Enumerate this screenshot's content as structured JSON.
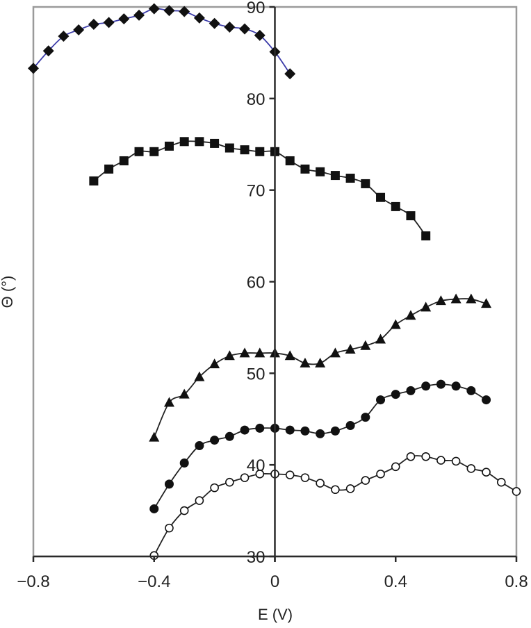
{
  "chart_data": {
    "type": "line",
    "title": "",
    "xlabel": "E (V)",
    "ylabel": "Θ (°)",
    "xlim": [
      -0.8,
      0.8
    ],
    "ylim": [
      30,
      90
    ],
    "xticks": [
      -0.8,
      -0.4,
      0,
      0.4,
      0.8
    ],
    "xtick_labels": [
      "−0.8",
      "−0.4",
      "0",
      "0.4",
      "0.8"
    ],
    "yticks": [
      30,
      40,
      50,
      60,
      70,
      80,
      90
    ],
    "ytick_labels": [
      "30",
      "40",
      "50",
      "60",
      "70",
      "80",
      "90"
    ],
    "grid": false,
    "legend": null,
    "series": [
      {
        "name": "diamonds",
        "marker": "diamond-filled",
        "line_color": "#3a3aa8",
        "x": [
          -0.8,
          -0.75,
          -0.7,
          -0.65,
          -0.6,
          -0.55,
          -0.5,
          -0.45,
          -0.4,
          -0.35,
          -0.3,
          -0.25,
          -0.2,
          -0.15,
          -0.1,
          -0.05,
          0,
          0.05
        ],
        "y": [
          83.3,
          85.2,
          86.8,
          87.5,
          88.1,
          88.3,
          88.7,
          89.1,
          89.8,
          89.6,
          89.5,
          88.8,
          88.2,
          87.8,
          87.6,
          86.9,
          85.1,
          82.7
        ]
      },
      {
        "name": "squares",
        "marker": "square-filled",
        "line_color": "#222222",
        "x": [
          -0.6,
          -0.55,
          -0.5,
          -0.45,
          -0.4,
          -0.35,
          -0.3,
          -0.25,
          -0.2,
          -0.15,
          -0.1,
          -0.05,
          0,
          0.05,
          0.1,
          0.15,
          0.2,
          0.25,
          0.3,
          0.35,
          0.4,
          0.45,
          0.5
        ],
        "y": [
          71.0,
          72.3,
          73.2,
          74.2,
          74.2,
          74.8,
          75.3,
          75.3,
          75.1,
          74.6,
          74.4,
          74.2,
          74.2,
          73.2,
          72.3,
          72.0,
          71.6,
          71.3,
          70.7,
          69.2,
          68.2,
          67.2,
          65.0
        ]
      },
      {
        "name": "triangles",
        "marker": "triangle-filled",
        "line_color": "#222222",
        "x": [
          -0.4,
          -0.35,
          -0.3,
          -0.25,
          -0.2,
          -0.15,
          -0.1,
          -0.05,
          0,
          0.05,
          0.1,
          0.15,
          0.2,
          0.25,
          0.3,
          0.35,
          0.4,
          0.45,
          0.5,
          0.55,
          0.6,
          0.65,
          0.7
        ],
        "y": [
          43.0,
          46.8,
          47.7,
          49.6,
          51.0,
          51.9,
          52.2,
          52.2,
          52.2,
          51.9,
          51.1,
          51.1,
          52.2,
          52.6,
          53.0,
          53.7,
          55.3,
          56.3,
          57.2,
          57.9,
          58.1,
          58.1,
          57.6
        ]
      },
      {
        "name": "filled circles",
        "marker": "circle-filled",
        "line_color": "#222222",
        "x": [
          -0.4,
          -0.35,
          -0.3,
          -0.25,
          -0.2,
          -0.15,
          -0.1,
          -0.05,
          0,
          0.05,
          0.1,
          0.15,
          0.2,
          0.25,
          0.3,
          0.35,
          0.4,
          0.45,
          0.5,
          0.55,
          0.6,
          0.65,
          0.7
        ],
        "y": [
          35.2,
          37.9,
          40.2,
          42.1,
          42.7,
          43.1,
          43.8,
          44.0,
          44.0,
          43.8,
          43.7,
          43.4,
          43.7,
          44.3,
          45.2,
          47.1,
          47.7,
          48.1,
          48.6,
          48.8,
          48.6,
          48.1,
          47.1
        ]
      },
      {
        "name": "open circles",
        "marker": "circle-open",
        "line_color": "#222222",
        "x": [
          -0.4,
          -0.35,
          -0.3,
          -0.25,
          -0.2,
          -0.15,
          -0.1,
          -0.05,
          0,
          0.05,
          0.1,
          0.15,
          0.2,
          0.25,
          0.3,
          0.35,
          0.4,
          0.45,
          0.5,
          0.55,
          0.6,
          0.65,
          0.7,
          0.75,
          0.8
        ],
        "y": [
          30.1,
          33.1,
          35.0,
          36.1,
          37.5,
          38.1,
          38.6,
          39.0,
          39.0,
          38.9,
          38.6,
          38.0,
          37.3,
          37.4,
          38.3,
          39.0,
          39.8,
          40.9,
          40.9,
          40.5,
          40.4,
          39.6,
          39.2,
          38.1,
          37.1
        ]
      }
    ]
  },
  "colors": {
    "frame": "#9a9a9a",
    "axis": "#2a2a2a",
    "marker": "#111111",
    "diamond_line": "#3a3aa8"
  }
}
